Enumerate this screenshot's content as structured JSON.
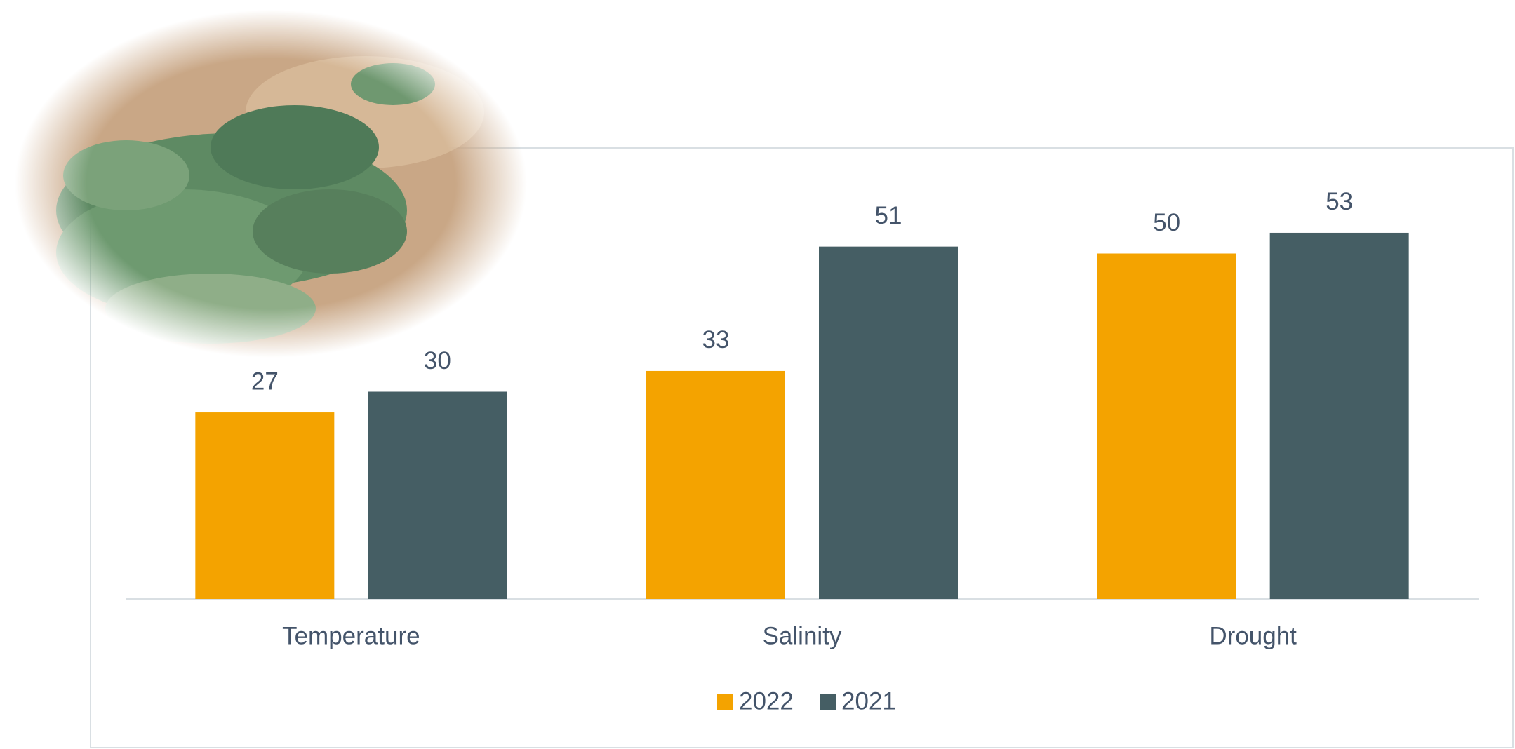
{
  "chart_data": {
    "type": "bar",
    "categories": [
      "Temperature",
      "Salinity",
      "Drought"
    ],
    "series": [
      {
        "name": "2022",
        "color": "#F4A300",
        "values": [
          27,
          33,
          50
        ]
      },
      {
        "name": "2021",
        "color": "#455E64",
        "values": [
          30,
          51,
          53
        ]
      }
    ],
    "legend": "bottom"
  }
}
